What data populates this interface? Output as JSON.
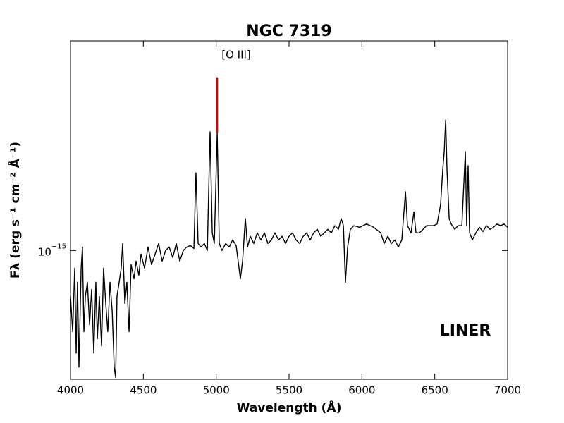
{
  "chart_data": {
    "type": "line",
    "title": "NGC 7319",
    "xlabel": "Wavelength (Å)",
    "ylabel": "Fλ (erg s⁻¹ cm⁻² Å⁻¹)",
    "annotations": [
      "[O III]",
      "LINER"
    ],
    "xlim": [
      4000,
      7000
    ],
    "xticks": [
      4000,
      4500,
      5000,
      5500,
      6000,
      6500,
      7000
    ],
    "ylim": [
      2.9e-16,
      7.5e-15
    ],
    "yticks": [
      {
        "value": 1e-15,
        "label": "10",
        "exponent": "−15"
      }
    ],
    "log_y": true,
    "grid": false,
    "series": [
      {
        "color": "#000000",
        "x": [
          4000,
          4015,
          4029,
          4039,
          4048,
          4058,
          4073,
          4082,
          4092,
          4102,
          4116,
          4131,
          4145,
          4160,
          4174,
          4184,
          4198,
          4213,
          4227,
          4242,
          4256,
          4271,
          4286,
          4300,
          4310,
          4319,
          4334,
          4348,
          4358,
          4373,
          4387,
          4402,
          4416,
          4436,
          4450,
          4469,
          4484,
          4508,
          4532,
          4556,
          4581,
          4605,
          4629,
          4653,
          4677,
          4702,
          4726,
          4750,
          4774,
          4798,
          4823,
          4847,
          4861,
          4876,
          4895,
          4919,
          4939,
          4958,
          4973,
          4987,
          5007,
          5021,
          5040,
          5065,
          5089,
          5113,
          5137,
          5166,
          5181,
          5200,
          5215,
          5234,
          5258,
          5282,
          5307,
          5331,
          5355,
          5379,
          5403,
          5428,
          5452,
          5476,
          5500,
          5524,
          5548,
          5573,
          5597,
          5621,
          5645,
          5669,
          5694,
          5718,
          5742,
          5766,
          5790,
          5815,
          5839,
          5858,
          5873,
          5887,
          5902,
          5921,
          5945,
          5984,
          6032,
          6081,
          6129,
          6153,
          6178,
          6202,
          6226,
          6250,
          6274,
          6299,
          6313,
          6337,
          6357,
          6371,
          6395,
          6420,
          6444,
          6468,
          6492,
          6516,
          6540,
          6555,
          6565,
          6575,
          6584,
          6599,
          6613,
          6637,
          6661,
          6686,
          6710,
          6719,
          6729,
          6739,
          6758,
          6782,
          6807,
          6831,
          6855,
          6879,
          6903,
          6928,
          6952,
          6976,
          7000
        ],
        "values": [
          6.43e-16,
          4.58e-16,
          8.44e-16,
          3.73e-16,
          7.37e-16,
          3.26e-16,
          8.44e-16,
          1.034e-15,
          4.58e-16,
          6.43e-16,
          7.37e-16,
          4.9e-16,
          6.88e-16,
          3.73e-16,
          7.37e-16,
          4.28e-16,
          6.43e-16,
          4e-16,
          8.44e-16,
          6.01e-16,
          4.58e-16,
          7.37e-16,
          5.61e-16,
          3.26e-16,
          2.95e-16,
          6.43e-16,
          7.37e-16,
          8.44e-16,
          1.07e-15,
          6.01e-16,
          7.37e-16,
          4.58e-16,
          8.73e-16,
          7.62e-16,
          9.03e-16,
          7.88e-16,
          9.67e-16,
          8.44e-16,
          1.034e-15,
          8.73e-16,
          9.67e-16,
          1.07e-15,
          9.03e-16,
          1e-15,
          1.034e-15,
          9.35e-16,
          1.07e-15,
          9.03e-16,
          1e-15,
          1.034e-15,
          1.049e-15,
          1.02e-15,
          2.11e-15,
          1.07e-15,
          1.034e-15,
          1.07e-15,
          1e-15,
          3.13e-15,
          1.185e-15,
          1.07e-15,
          3.1e-15,
          1.07e-15,
          1e-15,
          1.07e-15,
          1.034e-15,
          1.107e-15,
          1.049e-15,
          7.62e-16,
          9.03e-16,
          1.36e-15,
          1.034e-15,
          1.146e-15,
          1.07e-15,
          1.185e-15,
          1.107e-15,
          1.185e-15,
          1.07e-15,
          1.107e-15,
          1.185e-15,
          1.107e-15,
          1.146e-15,
          1.07e-15,
          1.146e-15,
          1.185e-15,
          1.107e-15,
          1.07e-15,
          1.146e-15,
          1.185e-15,
          1.107e-15,
          1.185e-15,
          1.226e-15,
          1.146e-15,
          1.185e-15,
          1.226e-15,
          1.185e-15,
          1.27e-15,
          1.226e-15,
          1.36e-15,
          1.27e-15,
          7.37e-16,
          1.034e-15,
          1.226e-15,
          1.27e-15,
          1.25e-15,
          1.29e-15,
          1.25e-15,
          1.185e-15,
          1.07e-15,
          1.146e-15,
          1.07e-15,
          1.107e-15,
          1.034e-15,
          1.107e-15,
          1.76e-15,
          1.27e-15,
          1.185e-15,
          1.45e-15,
          1.185e-15,
          1.185e-15,
          1.226e-15,
          1.27e-15,
          1.27e-15,
          1.27e-15,
          1.29e-15,
          1.555e-15,
          2.18e-15,
          2.59e-15,
          3.51e-15,
          2.18e-15,
          1.36e-15,
          1.29e-15,
          1.226e-15,
          1.27e-15,
          1.27e-15,
          2.59e-15,
          1.27e-15,
          2.26e-15,
          1.185e-15,
          1.107e-15,
          1.185e-15,
          1.25e-15,
          1.2e-15,
          1.27e-15,
          1.226e-15,
          1.25e-15,
          1.29e-15,
          1.27e-15,
          1.29e-15,
          1.25e-15
        ]
      },
      {
        "color": "#dd0000",
        "x": [
          5007,
          5007
        ],
        "values": [
          3.1e-15,
          5.28e-15
        ]
      }
    ]
  }
}
